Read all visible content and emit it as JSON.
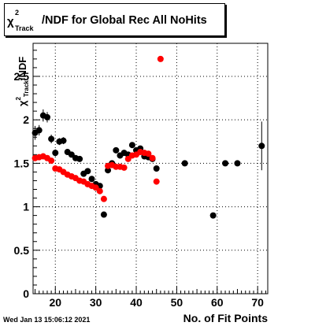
{
  "chart_data": {
    "type": "scatter",
    "title": {
      "symbol": "χ",
      "superscript": "2",
      "subscript": "Track",
      "text": "/NDF for Global Rec All NoHits"
    },
    "xlabel": "No. of Fit Points",
    "ylabel": {
      "symbol": "χ",
      "superscript": "2",
      "subscript": "Track",
      "text": "/NDF"
    },
    "xlim": [
      14.5,
      72.5
    ],
    "ylim": [
      0,
      2.88
    ],
    "xticks": [
      20,
      30,
      40,
      50,
      60,
      70
    ],
    "yticks": [
      0,
      0.5,
      1,
      1.5,
      2,
      2.5
    ],
    "ytick_labels": [
      "0",
      "0.5",
      "1",
      "1.5",
      "2",
      "2.5"
    ],
    "grid": true,
    "series": [
      {
        "color": "#000000",
        "x": [
          15,
          16,
          17,
          18,
          19,
          20,
          21,
          22,
          23,
          24,
          25,
          26,
          27,
          28,
          29,
          30,
          31,
          32,
          33,
          34,
          35,
          36,
          37,
          38,
          39,
          40,
          41,
          42,
          43,
          44,
          45,
          52,
          59,
          62,
          65,
          71
        ],
        "y": [
          1.85,
          1.88,
          2.05,
          2.03,
          1.78,
          1.62,
          1.75,
          1.76,
          1.63,
          1.6,
          1.56,
          1.55,
          1.38,
          1.41,
          1.32,
          1.26,
          1.24,
          0.91,
          1.42,
          1.5,
          1.65,
          1.59,
          1.62,
          1.6,
          1.71,
          1.65,
          1.67,
          1.58,
          1.57,
          1.55,
          1.44,
          1.5,
          0.9,
          1.5,
          1.5,
          1.7
        ],
        "yerr": [
          0.08,
          0.06,
          0.07,
          0.06,
          0.05,
          0.04,
          0.04,
          0.04,
          0.03,
          0.03,
          0.03,
          0.03,
          0.03,
          0.03,
          0.03,
          0.03,
          0.03,
          0.02,
          0.02,
          0.02,
          0.02,
          0.02,
          0.02,
          0.02,
          0.02,
          0.02,
          0.02,
          0.02,
          0.02,
          0.02,
          0.02,
          0.02,
          0.03,
          0.02,
          0.02,
          0.28
        ]
      },
      {
        "color": "#ff0000",
        "x": [
          15,
          16,
          17,
          18,
          19,
          20,
          21,
          22,
          23,
          24,
          25,
          26,
          27,
          28,
          29,
          30,
          31,
          32,
          33,
          34,
          35,
          36,
          37,
          38,
          39,
          40,
          41,
          42,
          43,
          44,
          45,
          46
        ],
        "y": [
          1.56,
          1.57,
          1.58,
          1.56,
          1.53,
          1.44,
          1.43,
          1.4,
          1.37,
          1.35,
          1.33,
          1.3,
          1.29,
          1.26,
          1.24,
          1.22,
          1.18,
          1.09,
          1.47,
          1.48,
          1.46,
          1.46,
          1.45,
          1.55,
          1.59,
          1.6,
          1.63,
          1.62,
          1.61,
          1.56,
          1.29,
          2.7
        ]
      }
    ]
  },
  "timestamp": "Wed Jan 13 15:06:12 2021"
}
